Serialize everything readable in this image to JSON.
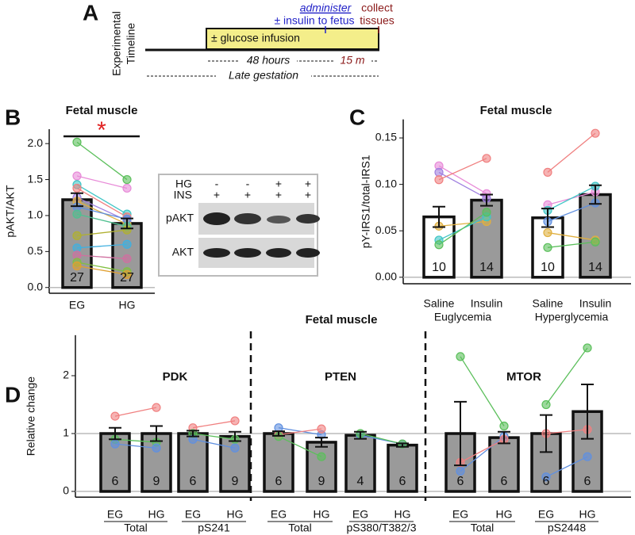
{
  "panel_a": {
    "letter": "A",
    "label_1": "Experimental",
    "label_2": "Timeline",
    "infusion": "± glucose infusion",
    "administer": "administer",
    "insulin": "± insulin to fetus",
    "collect": "collect",
    "tissues": "tissues",
    "hours": "48 hours",
    "minutes": "15 m",
    "gestation": "Late gestation"
  },
  "blot": {
    "rows": [
      "HG",
      "INS"
    ],
    "lanes": [
      [
        "-",
        "+"
      ],
      [
        "-",
        "+"
      ],
      [
        "+",
        "+"
      ],
      [
        "+",
        "+"
      ]
    ],
    "bands": [
      "pAKT",
      "AKT"
    ]
  },
  "chart_data": [
    {
      "type": "bar",
      "letter": "B",
      "title": "Fetal muscle",
      "ylabel": "pAKT/AKT",
      "significance": "*",
      "color": "#9a9a9a",
      "ylim": [
        -0.08,
        2.2
      ],
      "yticks": [
        {
          "value": 0,
          "label": "0.0"
        },
        0.5,
        {
          "value": 1,
          "label": "1.0"
        },
        1.5,
        {
          "value": 2,
          "label": "2.0"
        }
      ],
      "ref_lines": [
        0
      ],
      "panels": [
        {
          "categories": [
            "EG",
            "HG"
          ],
          "values": [
            1.22,
            0.89
          ],
          "errors": [
            0.09,
            0.07
          ],
          "n": [
            27,
            27
          ],
          "pairs": [
            [
              {
                "color": "#5bbf5b",
                "values": [
                  2.02,
                  1.5
                ]
              },
              {
                "color": "#e88bd8",
                "values": [
                  1.55,
                  1.38
                ]
              },
              {
                "color": "#3fc6c6",
                "values": [
                  1.43,
                  1.02
                ]
              },
              {
                "color": "#f08080",
                "values": [
                  1.38,
                  0.98
                ]
              },
              {
                "color": "#a080e0",
                "values": [
                  1.25,
                  0.93
                ]
              },
              {
                "color": "#e0b040",
                "values": [
                  1.2,
                  0.88
                ]
              },
              {
                "color": "#6090e0",
                "values": [
                  1.12,
                  0.95
                ]
              },
              {
                "color": "#50c090",
                "values": [
                  1.02,
                  0.85
                ]
              },
              {
                "color": "#b0b030",
                "values": [
                  0.72,
                  0.8
                ]
              },
              {
                "color": "#40b0e0",
                "values": [
                  0.55,
                  0.6
                ]
              },
              {
                "color": "#d070a0",
                "values": [
                  0.45,
                  0.4
                ]
              },
              {
                "color": "#80c040",
                "values": [
                  0.35,
                  0.22
                ]
              },
              {
                "color": "#e0a030",
                "values": [
                  0.3,
                  0.18
                ]
              }
            ]
          ]
        }
      ]
    },
    {
      "type": "bar",
      "letter": "C",
      "title": "Fetal muscle",
      "ylabel": "pY-IRS1/total-IRS1",
      "color": "#9a9a9a",
      "ylim": [
        -0.007,
        0.17
      ],
      "yticks": [
        {
          "value": 0,
          "label": "0.00"
        },
        0.05,
        {
          "value": 0.1,
          "label": "0.10"
        },
        0.15
      ],
      "ref_lines": [
        0
      ],
      "panels": [
        {
          "categories": [
            "Saline",
            "Insulin",
            "Saline",
            "Insulin"
          ],
          "groups": [
            "Euglycemia",
            "Hyperglycemia"
          ],
          "colors": [
            "#ffffff",
            "#9a9a9a",
            "#ffffff",
            "#9a9a9a"
          ],
          "values": [
            0.065,
            0.083,
            0.064,
            0.089
          ],
          "errors": [
            0.011,
            0.006,
            0.01,
            0.01
          ],
          "n": [
            10,
            14,
            10,
            14
          ],
          "pairs": [
            [
              {
                "color": "#e88bd8",
                "values": [
                  0.12,
                  0.09
                ]
              },
              {
                "color": "#a080e0",
                "values": [
                  0.113,
                  0.085
                ]
              },
              {
                "color": "#f08080",
                "values": [
                  0.105,
                  0.128
                ]
              },
              {
                "color": "#e0b040",
                "values": [
                  0.055,
                  0.06
                ]
              },
              {
                "color": "#3fc6c6",
                "values": [
                  0.04,
                  0.065
                ]
              },
              {
                "color": "#5bbf5b",
                "values": [
                  0.035,
                  0.07
                ]
              }
            ],
            [
              {
                "color": "#f08080",
                "values": [
                  0.113,
                  0.155
                ]
              },
              {
                "color": "#e88bd8",
                "values": [
                  0.078,
                  0.092
                ]
              },
              {
                "color": "#3fc6c6",
                "values": [
                  0.072,
                  0.098
                ]
              },
              {
                "color": "#6090e0",
                "values": [
                  0.06,
                  0.08
                ]
              },
              {
                "color": "#e0b040",
                "values": [
                  0.048,
                  0.04
                ]
              },
              {
                "color": "#5bbf5b",
                "values": [
                  0.032,
                  0.038
                ]
              }
            ]
          ]
        }
      ]
    },
    {
      "type": "bar",
      "letter": "D",
      "title": "Fetal muscle",
      "ylabel": "Relative change",
      "color": "#9a9a9a",
      "ylim": [
        -0.1,
        2.7
      ],
      "yticks": [
        0,
        1,
        2
      ],
      "ref_lines": [
        0,
        1
      ],
      "panels": [
        {
          "title": "PDK",
          "categories": [
            "EG",
            "HG",
            "EG",
            "HG"
          ],
          "groups": [
            "Total",
            "pS241"
          ],
          "values": [
            1,
            1,
            1,
            0.95
          ],
          "errors": [
            0.1,
            0.13,
            0.05,
            0.08
          ],
          "n": [
            6,
            9,
            6,
            9
          ],
          "pairs": [
            [
              {
                "color": "#f08080",
                "values": [
                  1.3,
                  1.45
                ]
              },
              {
                "color": "#5bbf5b",
                "values": [
                  0.9,
                  0.85
                ]
              },
              {
                "color": "#6090e0",
                "values": [
                  0.82,
                  0.75
                ]
              }
            ],
            [
              {
                "color": "#f08080",
                "values": [
                  1.1,
                  1.22
                ]
              },
              {
                "color": "#5bbf5b",
                "values": [
                  1,
                  0.9
                ]
              },
              {
                "color": "#6090e0",
                "values": [
                  0.9,
                  0.75
                ]
              }
            ]
          ]
        },
        {
          "title": "PTEN",
          "categories": [
            "EG",
            "HG",
            "EG",
            "HG"
          ],
          "groups": [
            "Total",
            "pS380/T382/3"
          ],
          "values": [
            1,
            0.85,
            0.97,
            0.8
          ],
          "errors": [
            0.04,
            0.08,
            0.06,
            0.03
          ],
          "n": [
            6,
            9,
            4,
            6
          ],
          "pairs": [
            [
              {
                "color": "#6090e0",
                "values": [
                  1.1,
                  0.98
                ]
              },
              {
                "color": "#f08080",
                "values": [
                  0.98,
                  1.08
                ]
              },
              {
                "color": "#5bbf5b",
                "values": [
                  0.95,
                  0.6
                ]
              }
            ],
            [
              {
                "color": "#6090e0",
                "values": [
                  0.97,
                  0.82
                ]
              },
              {
                "color": "#5bbf5b",
                "values": [
                  1,
                  0.82
                ]
              }
            ]
          ]
        },
        {
          "title": "MTOR",
          "categories": [
            "EG",
            "HG",
            "EG",
            "HG"
          ],
          "groups": [
            "Total",
            "pS2448"
          ],
          "values": [
            1,
            0.93,
            1,
            1.38
          ],
          "errors": [
            0.55,
            0.1,
            0.32,
            0.47
          ],
          "n": [
            6,
            6,
            6,
            6
          ],
          "pairs": [
            [
              {
                "color": "#5bbf5b",
                "values": [
                  2.33,
                  1.13
                ]
              },
              {
                "color": "#6090e0",
                "values": [
                  0.35,
                  0.95
                ]
              },
              {
                "color": "#f08080",
                "values": [
                  0.5,
                  0.9
                ]
              }
            ],
            [
              {
                "color": "#5bbf5b",
                "values": [
                  1.5,
                  2.48
                ]
              },
              {
                "color": "#f08080",
                "values": [
                  1,
                  1.07
                ]
              },
              {
                "color": "#6090e0",
                "values": [
                  0.25,
                  0.6
                ]
              }
            ]
          ]
        }
      ]
    }
  ]
}
